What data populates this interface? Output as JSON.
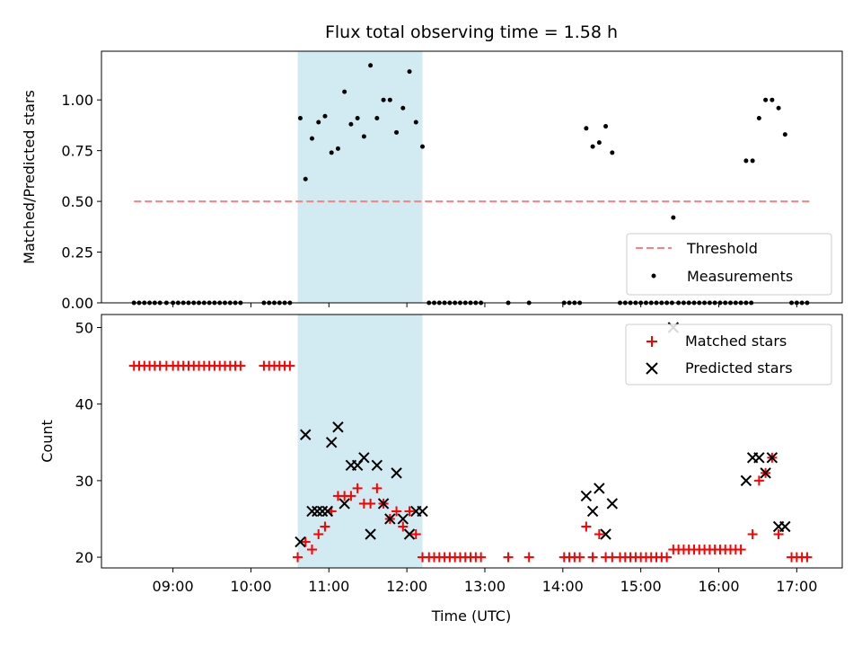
{
  "chart_data": [
    {
      "type": "scatter",
      "title": "Flux total observing time = 1.58 h",
      "xlabel": "",
      "ylabel": "Matched/Predicted stars",
      "xlim": [
        "08:05",
        "17:35"
      ],
      "ylim": [
        0,
        1.24
      ],
      "yticks": [
        0,
        0.25,
        0.5,
        0.75,
        1.0
      ],
      "ytick_labels": [
        "0.00",
        "0.25",
        "0.50",
        "0.75",
        "1.00"
      ],
      "xticks": [
        "09:00",
        "10:00",
        "11:00",
        "12:00",
        "13:00",
        "14:00",
        "15:00",
        "16:00",
        "17:00"
      ],
      "xtick_labels_shown": false,
      "shaded_region": {
        "start": "10:36",
        "end": "12:12",
        "color": "#add8e6"
      },
      "legend_position": "lower-right",
      "series": [
        {
          "name": "Threshold",
          "kind": "dashed-line",
          "color": "#ff7f7f",
          "x": [
            "08:30",
            "17:10"
          ],
          "y": [
            0.5,
            0.5
          ]
        },
        {
          "name": "Measurements",
          "kind": "dots",
          "color": "#000000",
          "points": [
            [
              "08:30",
              0
            ],
            [
              "08:34",
              0
            ],
            [
              "08:38",
              0
            ],
            [
              "08:42",
              0
            ],
            [
              "08:46",
              0
            ],
            [
              "08:50",
              0
            ],
            [
              "08:55",
              0
            ],
            [
              "09:00",
              0
            ],
            [
              "09:04",
              0
            ],
            [
              "09:08",
              0
            ],
            [
              "09:12",
              0
            ],
            [
              "09:16",
              0
            ],
            [
              "09:20",
              0
            ],
            [
              "09:24",
              0
            ],
            [
              "09:28",
              0
            ],
            [
              "09:32",
              0
            ],
            [
              "09:36",
              0
            ],
            [
              "09:40",
              0
            ],
            [
              "09:44",
              0
            ],
            [
              "09:48",
              0
            ],
            [
              "09:52",
              0
            ],
            [
              "10:10",
              0
            ],
            [
              "10:14",
              0
            ],
            [
              "10:18",
              0
            ],
            [
              "10:22",
              0
            ],
            [
              "10:26",
              0
            ],
            [
              "10:30",
              0
            ],
            [
              "10:38",
              0.91
            ],
            [
              "10:42",
              0.61
            ],
            [
              "10:47",
              0.81
            ],
            [
              "10:52",
              0.89
            ],
            [
              "10:57",
              0.92
            ],
            [
              "11:02",
              0.74
            ],
            [
              "11:07",
              0.76
            ],
            [
              "11:12",
              1.04
            ],
            [
              "11:17",
              0.88
            ],
            [
              "11:22",
              0.91
            ],
            [
              "11:27",
              0.82
            ],
            [
              "11:32",
              1.17
            ],
            [
              "11:37",
              0.91
            ],
            [
              "11:42",
              1.0
            ],
            [
              "11:47",
              1.0
            ],
            [
              "11:52",
              0.84
            ],
            [
              "11:57",
              0.96
            ],
            [
              "12:02",
              1.14
            ],
            [
              "12:07",
              0.89
            ],
            [
              "12:12",
              0.77
            ],
            [
              "12:17",
              0
            ],
            [
              "12:21",
              0
            ],
            [
              "12:25",
              0
            ],
            [
              "12:29",
              0
            ],
            [
              "12:33",
              0
            ],
            [
              "12:37",
              0
            ],
            [
              "12:41",
              0
            ],
            [
              "12:45",
              0
            ],
            [
              "12:49",
              0
            ],
            [
              "12:53",
              0
            ],
            [
              "12:57",
              0
            ],
            [
              "13:18",
              0
            ],
            [
              "13:34",
              0
            ],
            [
              "14:01",
              0
            ],
            [
              "14:05",
              0
            ],
            [
              "14:09",
              0
            ],
            [
              "14:13",
              0
            ],
            [
              "14:18",
              0.86
            ],
            [
              "14:23",
              0.77
            ],
            [
              "14:28",
              0.79
            ],
            [
              "14:33",
              0.87
            ],
            [
              "14:38",
              0.74
            ],
            [
              "14:44",
              0
            ],
            [
              "14:48",
              0
            ],
            [
              "14:52",
              0
            ],
            [
              "14:56",
              0
            ],
            [
              "15:00",
              0
            ],
            [
              "15:04",
              0
            ],
            [
              "15:08",
              0
            ],
            [
              "15:12",
              0
            ],
            [
              "15:16",
              0
            ],
            [
              "15:20",
              0
            ],
            [
              "15:24",
              0
            ],
            [
              "15:25",
              0.42
            ],
            [
              "15:29",
              0
            ],
            [
              "15:33",
              0
            ],
            [
              "15:37",
              0
            ],
            [
              "15:41",
              0
            ],
            [
              "15:45",
              0
            ],
            [
              "15:49",
              0
            ],
            [
              "15:53",
              0
            ],
            [
              "15:57",
              0
            ],
            [
              "16:01",
              0
            ],
            [
              "16:05",
              0
            ],
            [
              "16:09",
              0
            ],
            [
              "16:13",
              0
            ],
            [
              "16:17",
              0
            ],
            [
              "16:21",
              0
            ],
            [
              "16:25",
              0
            ],
            [
              "16:21",
              0.7
            ],
            [
              "16:26",
              0.7
            ],
            [
              "16:31",
              0.91
            ],
            [
              "16:36",
              1.0
            ],
            [
              "16:41",
              1.0
            ],
            [
              "16:46",
              0.96
            ],
            [
              "16:51",
              0.83
            ],
            [
              "16:56",
              0
            ],
            [
              "17:00",
              0
            ],
            [
              "17:04",
              0
            ],
            [
              "17:08",
              0
            ]
          ]
        }
      ]
    },
    {
      "type": "scatter",
      "title": "",
      "xlabel": "Time (UTC)",
      "ylabel": "Count",
      "xlim": [
        "08:05",
        "17:35"
      ],
      "ylim": [
        18.6,
        51.7
      ],
      "yticks": [
        20,
        30,
        40,
        50
      ],
      "ytick_labels": [
        "20",
        "30",
        "40",
        "50"
      ],
      "xticks": [
        "09:00",
        "10:00",
        "11:00",
        "12:00",
        "13:00",
        "14:00",
        "15:00",
        "16:00",
        "17:00"
      ],
      "xtick_labels": [
        "09:00",
        "10:00",
        "11:00",
        "12:00",
        "13:00",
        "14:00",
        "15:00",
        "16:00",
        "17:00"
      ],
      "shaded_region": {
        "start": "10:36",
        "end": "12:12",
        "color": "#add8e6"
      },
      "legend_position": "upper-right",
      "series": [
        {
          "name": "Matched stars",
          "marker": "plus",
          "color": "#ff0000",
          "points": [
            [
              "08:30",
              45
            ],
            [
              "08:34",
              45
            ],
            [
              "08:38",
              45
            ],
            [
              "08:42",
              45
            ],
            [
              "08:46",
              45
            ],
            [
              "08:50",
              45
            ],
            [
              "08:55",
              45
            ],
            [
              "09:00",
              45
            ],
            [
              "09:04",
              45
            ],
            [
              "09:08",
              45
            ],
            [
              "09:12",
              45
            ],
            [
              "09:16",
              45
            ],
            [
              "09:20",
              45
            ],
            [
              "09:24",
              45
            ],
            [
              "09:28",
              45
            ],
            [
              "09:32",
              45
            ],
            [
              "09:36",
              45
            ],
            [
              "09:40",
              45
            ],
            [
              "09:44",
              45
            ],
            [
              "09:48",
              45
            ],
            [
              "09:52",
              45
            ],
            [
              "10:10",
              45
            ],
            [
              "10:14",
              45
            ],
            [
              "10:18",
              45
            ],
            [
              "10:22",
              45
            ],
            [
              "10:26",
              45
            ],
            [
              "10:30",
              45
            ],
            [
              "10:36",
              20
            ],
            [
              "10:42",
              22
            ],
            [
              "10:47",
              21
            ],
            [
              "10:52",
              23
            ],
            [
              "10:57",
              24
            ],
            [
              "11:02",
              26
            ],
            [
              "11:07",
              28
            ],
            [
              "11:12",
              28
            ],
            [
              "11:17",
              28
            ],
            [
              "11:22",
              29
            ],
            [
              "11:27",
              27
            ],
            [
              "11:32",
              27
            ],
            [
              "11:37",
              29
            ],
            [
              "11:42",
              27
            ],
            [
              "11:47",
              25
            ],
            [
              "11:52",
              26
            ],
            [
              "11:57",
              24
            ],
            [
              "12:02",
              26
            ],
            [
              "12:07",
              23
            ],
            [
              "12:12",
              20
            ],
            [
              "12:17",
              20
            ],
            [
              "12:21",
              20
            ],
            [
              "12:25",
              20
            ],
            [
              "12:29",
              20
            ],
            [
              "12:33",
              20
            ],
            [
              "12:37",
              20
            ],
            [
              "12:41",
              20
            ],
            [
              "12:45",
              20
            ],
            [
              "12:49",
              20
            ],
            [
              "12:53",
              20
            ],
            [
              "12:57",
              20
            ],
            [
              "13:18",
              20
            ],
            [
              "13:34",
              20
            ],
            [
              "14:01",
              20
            ],
            [
              "14:05",
              20
            ],
            [
              "14:09",
              20
            ],
            [
              "14:13",
              20
            ],
            [
              "14:18",
              24
            ],
            [
              "14:23",
              20
            ],
            [
              "14:28",
              23
            ],
            [
              "14:33",
              20
            ],
            [
              "14:38",
              20
            ],
            [
              "14:44",
              20
            ],
            [
              "14:48",
              20
            ],
            [
              "14:52",
              20
            ],
            [
              "14:56",
              20
            ],
            [
              "15:00",
              20
            ],
            [
              "15:04",
              20
            ],
            [
              "15:08",
              20
            ],
            [
              "15:12",
              20
            ],
            [
              "15:16",
              20
            ],
            [
              "15:20",
              20
            ],
            [
              "15:25",
              21
            ],
            [
              "15:29",
              21
            ],
            [
              "15:33",
              21
            ],
            [
              "15:37",
              21
            ],
            [
              "15:41",
              21
            ],
            [
              "15:45",
              21
            ],
            [
              "15:49",
              21
            ],
            [
              "15:53",
              21
            ],
            [
              "15:57",
              21
            ],
            [
              "16:01",
              21
            ],
            [
              "16:05",
              21
            ],
            [
              "16:09",
              21
            ],
            [
              "16:13",
              21
            ],
            [
              "16:17",
              21
            ],
            [
              "16:26",
              23
            ],
            [
              "16:31",
              30
            ],
            [
              "16:36",
              31
            ],
            [
              "16:41",
              33
            ],
            [
              "16:46",
              23
            ],
            [
              "16:56",
              20
            ],
            [
              "17:00",
              20
            ],
            [
              "17:04",
              20
            ],
            [
              "17:08",
              20
            ]
          ]
        },
        {
          "name": "Predicted stars",
          "marker": "x",
          "color": "#000000",
          "points": [
            [
              "10:38",
              22
            ],
            [
              "10:42",
              36
            ],
            [
              "10:47",
              26
            ],
            [
              "10:51",
              26
            ],
            [
              "10:55",
              26
            ],
            [
              "10:59",
              26
            ],
            [
              "11:02",
              35
            ],
            [
              "11:07",
              37
            ],
            [
              "11:12",
              27
            ],
            [
              "11:17",
              32
            ],
            [
              "11:22",
              32
            ],
            [
              "11:27",
              33
            ],
            [
              "11:32",
              23
            ],
            [
              "11:37",
              32
            ],
            [
              "11:42",
              27
            ],
            [
              "11:47",
              25
            ],
            [
              "11:52",
              31
            ],
            [
              "11:57",
              25
            ],
            [
              "12:02",
              23
            ],
            [
              "12:07",
              26
            ],
            [
              "12:12",
              26
            ],
            [
              "14:18",
              28
            ],
            [
              "14:23",
              26
            ],
            [
              "14:28",
              29
            ],
            [
              "14:33",
              23
            ],
            [
              "14:38",
              27
            ],
            [
              "15:25",
              50
            ],
            [
              "16:21",
              30
            ],
            [
              "16:26",
              33
            ],
            [
              "16:31",
              33
            ],
            [
              "16:36",
              31
            ],
            [
              "16:41",
              33
            ],
            [
              "16:46",
              24
            ],
            [
              "16:51",
              24
            ]
          ]
        }
      ]
    }
  ]
}
